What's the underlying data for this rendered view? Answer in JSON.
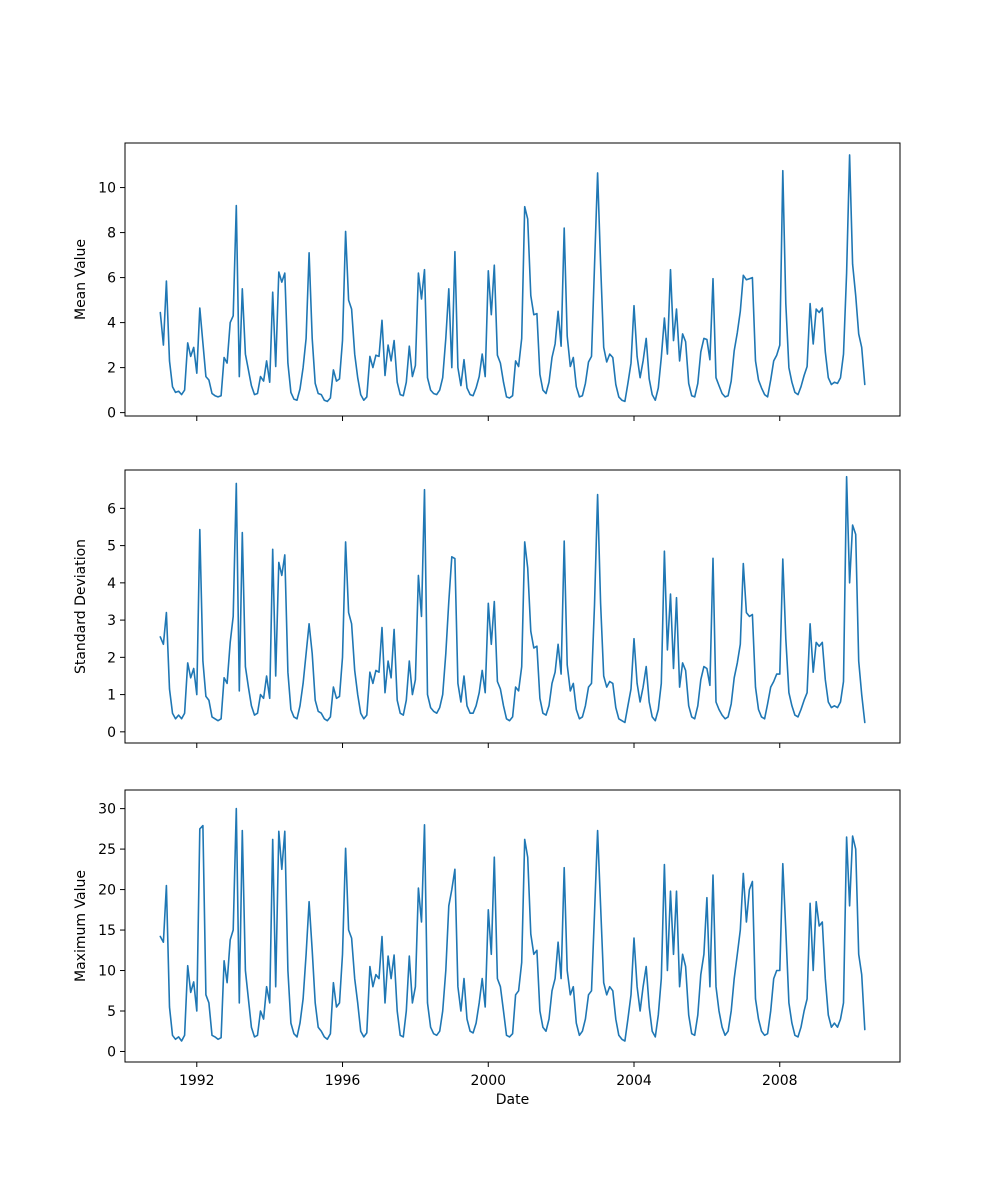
{
  "figure": {
    "background": "#ffffff",
    "line_color": "#1f77b4",
    "axis_color": "#000000",
    "text_color": "#000000"
  },
  "x_axis": {
    "label": "Date",
    "ticks": [
      1992,
      1996,
      2000,
      2004,
      2008
    ],
    "xlim": [
      1990.03,
      2011.3
    ]
  },
  "chart_data": [
    {
      "type": "line",
      "id": "mean",
      "ylabel": "Mean Value",
      "yticks": [
        0,
        2,
        4,
        6,
        8,
        10
      ],
      "ylim": [
        -0.15,
        11.98
      ],
      "x_start": 1991.0,
      "x_step_years": 0.0833333,
      "values": [
        4.45,
        3.0,
        5.85,
        2.3,
        1.15,
        0.9,
        0.95,
        0.8,
        1.0,
        3.1,
        2.5,
        2.9,
        1.75,
        4.65,
        3.1,
        1.6,
        1.45,
        0.85,
        0.75,
        0.7,
        0.75,
        2.45,
        2.2,
        4.0,
        4.3,
        9.2,
        1.6,
        5.5,
        2.6,
        1.9,
        1.2,
        0.8,
        0.85,
        1.6,
        1.4,
        2.3,
        1.35,
        5.35,
        2.05,
        6.25,
        5.8,
        6.2,
        2.2,
        0.9,
        0.6,
        0.55,
        1.05,
        2.0,
        3.3,
        7.1,
        3.3,
        1.3,
        0.85,
        0.8,
        0.55,
        0.5,
        0.65,
        1.9,
        1.4,
        1.5,
        3.2,
        8.05,
        5.0,
        4.6,
        2.6,
        1.55,
        0.8,
        0.55,
        0.7,
        2.5,
        2.0,
        2.55,
        2.5,
        4.1,
        1.65,
        3.0,
        2.3,
        3.2,
        1.35,
        0.8,
        0.75,
        1.35,
        2.95,
        1.6,
        2.1,
        6.2,
        5.05,
        6.35,
        1.55,
        1.0,
        0.85,
        0.8,
        1.0,
        1.55,
        3.3,
        5.5,
        2.0,
        7.15,
        2.0,
        1.2,
        2.35,
        1.1,
        0.8,
        0.75,
        1.1,
        1.6,
        2.6,
        1.6,
        6.3,
        4.35,
        6.55,
        2.55,
        2.2,
        1.35,
        0.7,
        0.65,
        0.75,
        2.3,
        2.05,
        3.3,
        9.15,
        8.6,
        5.2,
        4.35,
        4.4,
        1.7,
        1.0,
        0.85,
        1.35,
        2.45,
        3.05,
        4.5,
        2.95,
        8.2,
        3.4,
        2.05,
        2.45,
        1.15,
        0.7,
        0.75,
        1.3,
        2.25,
        2.5,
        6.5,
        10.65,
        6.6,
        2.9,
        2.25,
        2.6,
        2.45,
        1.25,
        0.7,
        0.55,
        0.5,
        1.3,
        2.2,
        4.75,
        2.5,
        1.55,
        2.3,
        3.3,
        1.5,
        0.8,
        0.55,
        1.1,
        2.45,
        4.2,
        2.6,
        6.35,
        3.2,
        4.6,
        2.3,
        3.5,
        3.15,
        1.3,
        0.75,
        0.7,
        1.3,
        2.7,
        3.3,
        3.25,
        2.35,
        5.95,
        1.55,
        1.2,
        0.85,
        0.7,
        0.75,
        1.4,
        2.75,
        3.55,
        4.5,
        6.1,
        5.9,
        5.95,
        6.0,
        2.3,
        1.45,
        1.1,
        0.8,
        0.7,
        1.45,
        2.3,
        2.55,
        3.0,
        10.75,
        4.85,
        2.0,
        1.35,
        0.9,
        0.8,
        1.15,
        1.65,
        2.05,
        4.85,
        3.05,
        4.6,
        4.45,
        4.65,
        2.7,
        1.55,
        1.25,
        1.35,
        1.3,
        1.55,
        2.6,
        6.2,
        11.45,
        6.6,
        5.2,
        3.5,
        2.9,
        1.25
      ]
    },
    {
      "type": "line",
      "id": "std",
      "ylabel": "Standard Deviation",
      "yticks": [
        0,
        1,
        2,
        3,
        4,
        5,
        6
      ],
      "ylim": [
        -0.3,
        7.03
      ],
      "x_start": 1991.0,
      "x_step_years": 0.0833333,
      "values": [
        2.55,
        2.35,
        3.2,
        1.15,
        0.5,
        0.35,
        0.45,
        0.35,
        0.5,
        1.85,
        1.45,
        1.7,
        1.0,
        5.43,
        1.9,
        0.95,
        0.85,
        0.4,
        0.35,
        0.3,
        0.35,
        1.45,
        1.3,
        2.4,
        3.1,
        6.67,
        1.1,
        5.35,
        1.75,
        1.2,
        0.7,
        0.45,
        0.5,
        1.0,
        0.9,
        1.5,
        0.9,
        4.9,
        1.5,
        4.55,
        4.2,
        4.75,
        1.6,
        0.6,
        0.4,
        0.35,
        0.7,
        1.3,
        2.1,
        2.9,
        2.1,
        0.85,
        0.55,
        0.5,
        0.35,
        0.3,
        0.4,
        1.2,
        0.9,
        0.95,
        2.0,
        5.1,
        3.2,
        2.9,
        1.65,
        1.0,
        0.5,
        0.35,
        0.45,
        1.6,
        1.3,
        1.65,
        1.6,
        2.8,
        1.05,
        1.9,
        1.45,
        2.75,
        0.85,
        0.5,
        0.45,
        0.85,
        1.9,
        1.0,
        1.4,
        4.2,
        3.1,
        6.5,
        1.0,
        0.65,
        0.55,
        0.5,
        0.65,
        1.0,
        2.1,
        3.5,
        4.7,
        4.65,
        1.3,
        0.8,
        1.5,
        0.7,
        0.5,
        0.5,
        0.7,
        1.05,
        1.65,
        1.05,
        3.45,
        2.35,
        3.5,
        1.35,
        1.15,
        0.7,
        0.35,
        0.3,
        0.4,
        1.2,
        1.1,
        1.75,
        5.1,
        4.4,
        2.7,
        2.25,
        2.3,
        0.9,
        0.5,
        0.45,
        0.7,
        1.3,
        1.6,
        2.35,
        1.55,
        5.12,
        1.8,
        1.1,
        1.3,
        0.6,
        0.35,
        0.4,
        0.7,
        1.2,
        1.3,
        3.4,
        6.37,
        3.45,
        1.5,
        1.2,
        1.35,
        1.3,
        0.65,
        0.35,
        0.3,
        0.25,
        0.7,
        1.15,
        2.5,
        1.3,
        0.8,
        1.2,
        1.75,
        0.8,
        0.4,
        0.3,
        0.6,
        1.3,
        4.85,
        2.2,
        3.7,
        1.7,
        3.6,
        1.2,
        1.85,
        1.65,
        0.7,
        0.4,
        0.35,
        0.7,
        1.4,
        1.75,
        1.7,
        1.25,
        4.66,
        0.8,
        0.6,
        0.45,
        0.35,
        0.4,
        0.75,
        1.45,
        1.85,
        2.35,
        4.52,
        3.2,
        3.1,
        3.15,
        1.2,
        0.6,
        0.4,
        0.35,
        0.75,
        1.2,
        1.35,
        1.55,
        1.55,
        4.64,
        2.5,
        1.05,
        0.7,
        0.45,
        0.4,
        0.6,
        0.85,
        1.05,
        2.9,
        1.6,
        2.4,
        2.3,
        2.4,
        1.4,
        0.8,
        0.65,
        0.7,
        0.65,
        0.8,
        1.35,
        6.85,
        4.0,
        5.55,
        5.3,
        1.9,
        1.0,
        0.25
      ]
    },
    {
      "type": "line",
      "id": "max",
      "ylabel": "Maximum Value",
      "yticks": [
        0,
        5,
        10,
        15,
        20,
        25,
        30
      ],
      "ylim": [
        -1.3,
        32.3
      ],
      "x_start": 1991.0,
      "x_step_years": 0.0833333,
      "values": [
        14.2,
        13.5,
        20.5,
        5.5,
        2.0,
        1.5,
        1.8,
        1.3,
        2.0,
        10.6,
        7.3,
        8.6,
        5.0,
        27.5,
        27.9,
        7.0,
        6.0,
        2.0,
        1.8,
        1.5,
        1.7,
        11.2,
        8.5,
        13.8,
        15.0,
        30.0,
        6.0,
        27.3,
        10.0,
        6.5,
        3.0,
        1.8,
        2.0,
        5.0,
        4.0,
        8.0,
        6.0,
        26.2,
        8.0,
        27.2,
        22.5,
        27.2,
        10.0,
        3.5,
        2.2,
        1.8,
        3.5,
        6.5,
        12.0,
        18.5,
        12.5,
        6.0,
        3.0,
        2.5,
        1.8,
        1.5,
        2.2,
        8.5,
        5.5,
        6.0,
        12.0,
        25.1,
        15.0,
        14.0,
        9.0,
        6.0,
        2.5,
        1.8,
        2.3,
        10.5,
        8.0,
        9.5,
        9.0,
        14.2,
        6.0,
        11.8,
        9.0,
        11.9,
        5.0,
        2.0,
        1.8,
        5.0,
        11.8,
        6.0,
        8.0,
        20.2,
        16.0,
        28.0,
        6.0,
        3.0,
        2.2,
        2.0,
        2.5,
        5.0,
        10.0,
        18.0,
        20.0,
        22.5,
        8.0,
        5.0,
        9.0,
        4.0,
        2.5,
        2.3,
        3.5,
        6.0,
        9.0,
        5.5,
        17.5,
        12.0,
        24.0,
        9.0,
        8.0,
        5.0,
        2.0,
        1.8,
        2.2,
        7.0,
        7.5,
        11.0,
        26.2,
        24.0,
        14.5,
        12.0,
        12.5,
        5.0,
        3.0,
        2.5,
        4.0,
        7.5,
        9.0,
        13.5,
        9.0,
        22.7,
        10.0,
        7.0,
        8.0,
        3.5,
        2.0,
        2.5,
        4.0,
        7.0,
        7.5,
        17.0,
        27.3,
        18.0,
        8.5,
        7.0,
        8.0,
        7.5,
        4.0,
        2.0,
        1.5,
        1.3,
        4.0,
        7.0,
        14.0,
        8.0,
        5.0,
        8.0,
        10.5,
        5.5,
        2.5,
        1.8,
        4.5,
        9.0,
        23.1,
        10.0,
        19.8,
        12.0,
        19.8,
        8.0,
        12.0,
        10.5,
        4.5,
        2.2,
        2.0,
        4.5,
        9.5,
        12.0,
        19.0,
        8.0,
        21.8,
        8.0,
        5.0,
        3.0,
        2.0,
        2.5,
        5.0,
        9.0,
        12.0,
        15.0,
        22.0,
        16.0,
        20.0,
        21.0,
        6.5,
        4.0,
        2.5,
        2.0,
        2.2,
        5.0,
        9.0,
        10.0,
        10.0,
        23.2,
        15.0,
        6.0,
        3.5,
        2.0,
        1.8,
        3.0,
        5.0,
        6.5,
        18.3,
        10.0,
        18.5,
        15.5,
        16.0,
        9.0,
        4.5,
        3.0,
        3.5,
        3.0,
        4.0,
        6.0,
        26.5,
        18.0,
        26.6,
        25.0,
        12.0,
        9.5,
        2.7
      ]
    }
  ]
}
